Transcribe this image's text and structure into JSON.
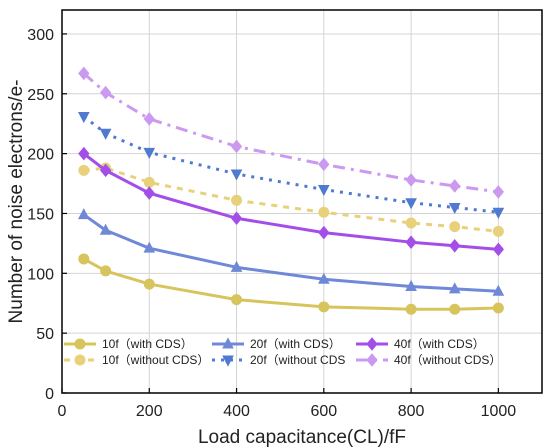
{
  "chart_data": {
    "type": "line",
    "xlabel": "Load capacitance(CL)/fF",
    "ylabel": "Number of noise electrons/e-",
    "xlim": [
      0,
      1100
    ],
    "ylim": [
      0,
      320
    ],
    "xticks": [
      0,
      200,
      400,
      600,
      800,
      1000
    ],
    "yticks": [
      0,
      50,
      100,
      150,
      200,
      250,
      300
    ],
    "grid": true,
    "legend_position": "bottom-left",
    "x": [
      50,
      100,
      200,
      400,
      600,
      800,
      900,
      1000
    ],
    "series": [
      {
        "name": "10f（with CDS）",
        "color": "#d8c45c",
        "marker": "circle",
        "dash": "solid",
        "values": [
          112,
          102,
          91,
          78,
          72,
          70,
          70,
          71
        ]
      },
      {
        "name": "20f（with CDS）",
        "color": "#6f88d8",
        "marker": "triangle-up",
        "dash": "solid",
        "values": [
          149,
          136,
          121,
          105,
          95,
          89,
          87,
          85
        ]
      },
      {
        "name": "40f（with CDS）",
        "color": "#a44ee8",
        "marker": "diamond",
        "dash": "solid",
        "values": [
          200,
          186,
          167,
          146,
          134,
          126,
          123,
          120
        ]
      },
      {
        "name": "10f（without CDS）",
        "color": "#e8d17a",
        "marker": "circle",
        "dash": "dash",
        "values": [
          186,
          188,
          176,
          161,
          151,
          142,
          139,
          135
        ]
      },
      {
        "name": "20f（without CDS",
        "color": "#4f7ad0",
        "marker": "triangle-down",
        "dash": "dot",
        "values": [
          231,
          217,
          201,
          183,
          170,
          159,
          155,
          151
        ]
      },
      {
        "name": "40f（without CDS）",
        "color": "#cc99f0",
        "marker": "diamond",
        "dash": "dashdot",
        "values": [
          267,
          251,
          229,
          206,
          191,
          178,
          173,
          168
        ]
      }
    ]
  }
}
